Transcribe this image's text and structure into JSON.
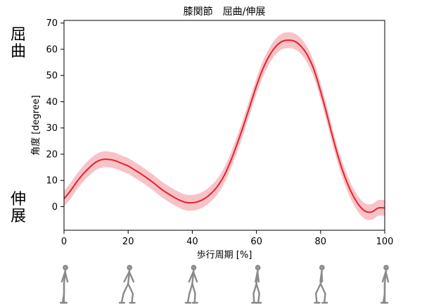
{
  "side_labels": {
    "flexion": "屈曲",
    "extension": "伸展"
  },
  "walker_figure_count": 6,
  "colors": {
    "mean_line": "#e8212b",
    "band": "#f7b9bd",
    "axis": "#000000"
  },
  "chart_data": {
    "type": "line",
    "title": "膝関節　屈曲/伸展",
    "xlabel": "歩行周期 [%]",
    "ylabel": "角度 [degree]",
    "xlim": [
      0,
      100
    ],
    "ylim": [
      -9,
      71
    ],
    "xticks": [
      0,
      20,
      40,
      60,
      80,
      100
    ],
    "yticks": [
      0,
      10,
      20,
      30,
      40,
      50,
      60,
      70
    ],
    "grid": false,
    "series": [
      {
        "kind": "mean",
        "x": [
          0,
          2,
          4,
          6,
          8,
          10,
          12,
          14,
          16,
          18,
          20,
          22,
          24,
          26,
          28,
          30,
          32,
          34,
          36,
          38,
          40,
          42,
          44,
          46,
          48,
          50,
          52,
          54,
          56,
          58,
          60,
          62,
          64,
          66,
          68,
          70,
          72,
          74,
          76,
          78,
          80,
          82,
          84,
          86,
          88,
          90,
          92,
          94,
          96,
          98,
          100
        ],
        "y": [
          3,
          6,
          9.5,
          12.5,
          15,
          17,
          18,
          18,
          17.5,
          16.5,
          15.5,
          14,
          12.5,
          10.8,
          9,
          7,
          5.3,
          3.8,
          2.5,
          1.6,
          1.5,
          2,
          3.2,
          5.2,
          8,
          12,
          17.5,
          24,
          31,
          38.5,
          46,
          52.5,
          57.5,
          61,
          63,
          63.5,
          63,
          61,
          57.5,
          52,
          44,
          35,
          25.5,
          17,
          10,
          4.5,
          0.5,
          -1.8,
          -2,
          -0.5,
          -0.5
        ]
      },
      {
        "kind": "std_band",
        "half_width": 3
      }
    ]
  }
}
